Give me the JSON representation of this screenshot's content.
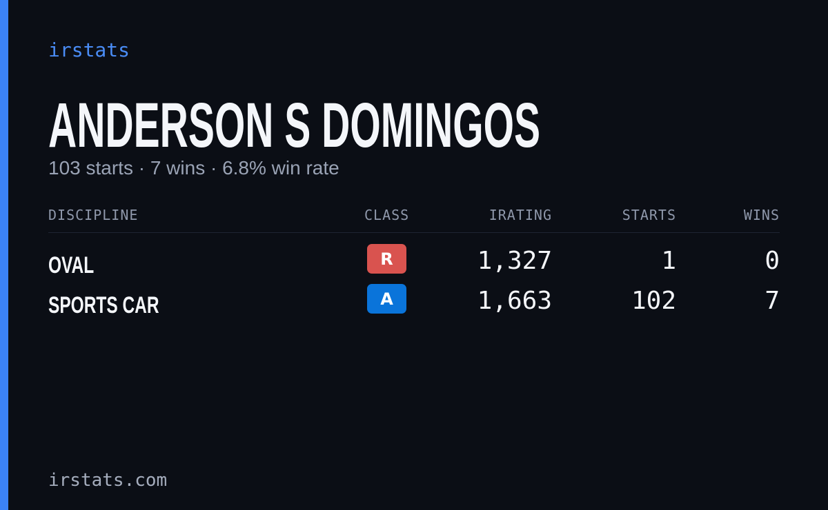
{
  "header": {
    "brand": "irstats",
    "title": "ANDERSON S DOMINGOS",
    "summary": "103 starts · 7 wins · 6.8% win rate"
  },
  "table": {
    "columns": [
      "DISCIPLINE",
      "CLASS",
      "IRATING",
      "STARTS",
      "WINS"
    ],
    "rows": [
      [
        "OVAL",
        "R",
        "1,327",
        "1",
        "0"
      ],
      [
        "SPORTS CAR",
        "A",
        "1,663",
        "102",
        "7"
      ]
    ]
  },
  "footer": "irstats.com"
}
